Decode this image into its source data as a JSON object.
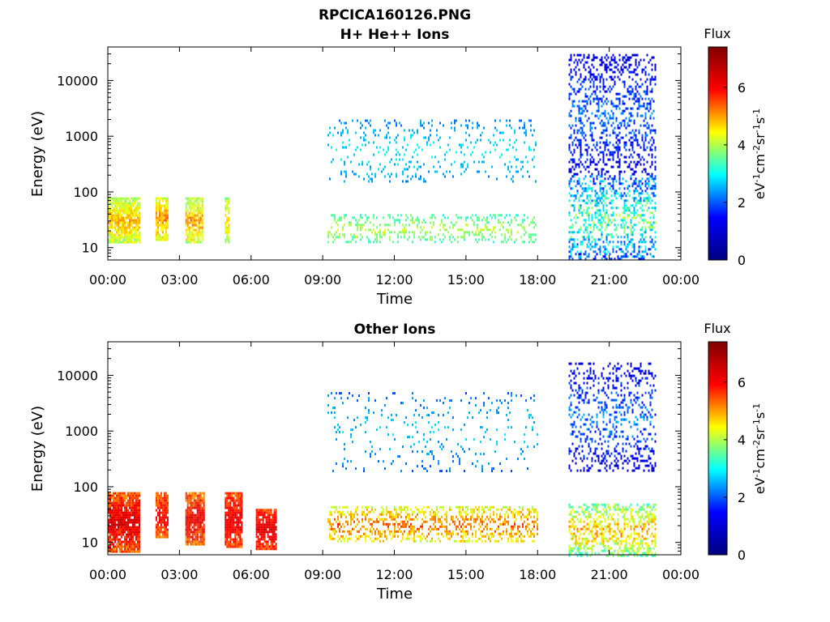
{
  "figure": {
    "title": "RPCICA160126.PNG"
  },
  "colormap": {
    "name": "jet",
    "stops": [
      "#00007f",
      "#0000ff",
      "#00ffff",
      "#ffff00",
      "#ff0000",
      "#7f0000"
    ]
  },
  "chart_data": [
    {
      "type": "heatmap",
      "title": "H+ He++ Ions",
      "xlabel": "Time",
      "ylabel": "Energy (eV)",
      "x_ticks": [
        "00:00",
        "03:00",
        "06:00",
        "09:00",
        "12:00",
        "15:00",
        "18:00",
        "21:00",
        "00:00"
      ],
      "x_range_hours": [
        0,
        24
      ],
      "y_scale": "log",
      "y_ticks": [
        10,
        100,
        1000,
        10000
      ],
      "y_tick_labels": [
        "10",
        "100",
        "1000",
        "10000"
      ],
      "ylim": [
        6,
        40000
      ],
      "colorbar": {
        "title": "Flux",
        "label": "eV-1cm-2sr-1s-1",
        "ticks": [
          0,
          2,
          4,
          6
        ],
        "tick_labels": [
          "0",
          "2",
          "4",
          "6"
        ],
        "range": [
          0,
          7.4
        ]
      },
      "data_blocks": [
        {
          "t_start": 0.0,
          "t_end": 1.35,
          "e_min": 12,
          "e_max": 80,
          "flux_low": 3.6,
          "flux_high": 5.2,
          "density": 0.85
        },
        {
          "t_start": 2.0,
          "t_end": 2.5,
          "e_min": 14,
          "e_max": 80,
          "flux_low": 3.8,
          "flux_high": 5.5,
          "density": 0.85
        },
        {
          "t_start": 3.25,
          "t_end": 3.95,
          "e_min": 12,
          "e_max": 80,
          "flux_low": 3.5,
          "flux_high": 5.5,
          "density": 0.8
        },
        {
          "t_start": 4.9,
          "t_end": 5.05,
          "e_min": 12,
          "e_max": 80,
          "flux_low": 3.5,
          "flux_high": 5.0,
          "density": 0.7
        },
        {
          "t_start": 9.2,
          "t_end": 17.9,
          "e_min": 150,
          "e_max": 2000,
          "flux_low": 2.0,
          "flux_high": 3.2,
          "density": 0.12
        },
        {
          "t_start": 9.2,
          "t_end": 17.9,
          "e_min": 12,
          "e_max": 40,
          "flux_low": 3.0,
          "flux_high": 4.4,
          "density": 0.25
        },
        {
          "t_start": 19.3,
          "t_end": 22.9,
          "e_min": 200,
          "e_max": 30000,
          "flux_low": 0.6,
          "flux_high": 2.6,
          "density": 0.3
        },
        {
          "t_start": 19.3,
          "t_end": 22.9,
          "e_min": 6,
          "e_max": 200,
          "flux_low": 1.0,
          "flux_high": 4.5,
          "density": 0.35
        }
      ]
    },
    {
      "type": "heatmap",
      "title": "Other Ions",
      "xlabel": "Time",
      "ylabel": "Energy (eV)",
      "x_ticks": [
        "00:00",
        "03:00",
        "06:00",
        "09:00",
        "12:00",
        "15:00",
        "18:00",
        "21:00",
        "00:00"
      ],
      "x_range_hours": [
        0,
        24
      ],
      "y_scale": "log",
      "y_ticks": [
        10,
        100,
        1000,
        10000
      ],
      "y_tick_labels": [
        "10",
        "100",
        "1000",
        "10000"
      ],
      "ylim": [
        6,
        40000
      ],
      "colorbar": {
        "title": "Flux",
        "label": "eV-1cm-2sr-1s-1",
        "ticks": [
          0,
          2,
          4,
          6
        ],
        "tick_labels": [
          "0",
          "2",
          "4",
          "6"
        ],
        "range": [
          0,
          7.4
        ]
      },
      "data_blocks": [
        {
          "t_start": 0.0,
          "t_end": 1.35,
          "e_min": 7,
          "e_max": 80,
          "flux_low": 4.8,
          "flux_high": 6.8,
          "density": 0.9
        },
        {
          "t_start": 2.0,
          "t_end": 2.5,
          "e_min": 12,
          "e_max": 80,
          "flux_low": 4.8,
          "flux_high": 6.5,
          "density": 0.9
        },
        {
          "t_start": 3.25,
          "t_end": 4.0,
          "e_min": 9,
          "e_max": 80,
          "flux_low": 4.8,
          "flux_high": 6.6,
          "density": 0.9
        },
        {
          "t_start": 4.9,
          "t_end": 5.6,
          "e_min": 8,
          "e_max": 80,
          "flux_low": 5.0,
          "flux_high": 6.8,
          "density": 0.9
        },
        {
          "t_start": 6.2,
          "t_end": 7.05,
          "e_min": 8,
          "e_max": 40,
          "flux_low": 5.2,
          "flux_high": 6.8,
          "density": 0.9
        },
        {
          "t_start": 9.2,
          "t_end": 18.0,
          "e_min": 10,
          "e_max": 45,
          "flux_low": 3.8,
          "flux_high": 5.8,
          "density": 0.4
        },
        {
          "t_start": 9.2,
          "t_end": 18.0,
          "e_min": 200,
          "e_max": 5000,
          "flux_low": 1.8,
          "flux_high": 3.0,
          "density": 0.07
        },
        {
          "t_start": 19.3,
          "t_end": 22.9,
          "e_min": 200,
          "e_max": 17000,
          "flux_low": 0.5,
          "flux_high": 2.8,
          "density": 0.25
        },
        {
          "t_start": 19.3,
          "t_end": 22.9,
          "e_min": 6,
          "e_max": 50,
          "flux_low": 3.0,
          "flux_high": 5.5,
          "density": 0.45
        }
      ]
    }
  ]
}
